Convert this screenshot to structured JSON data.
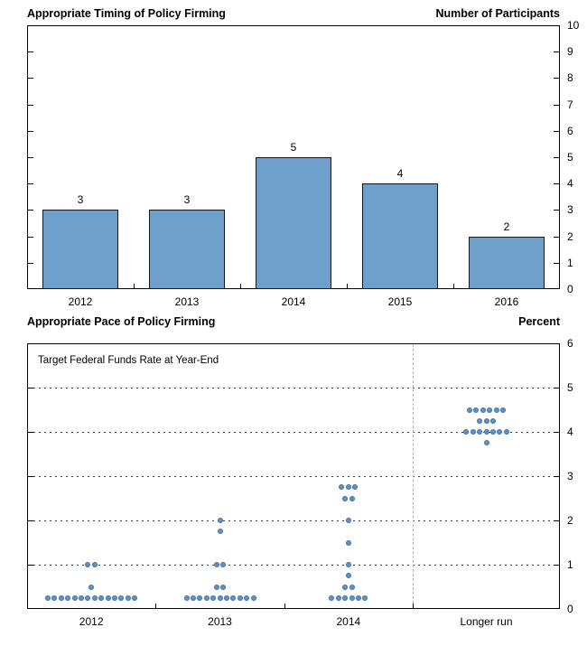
{
  "chart_data": [
    {
      "type": "bar",
      "title": "Appropriate Timing of Policy Firming",
      "right_axis_label": "Number of Participants",
      "categories": [
        "2012",
        "2013",
        "2014",
        "2015",
        "2016"
      ],
      "values": [
        3,
        3,
        5,
        4,
        2
      ],
      "ylim": [
        0,
        10
      ],
      "yticks": [
        0,
        1,
        2,
        3,
        4,
        5,
        6,
        7,
        8,
        9,
        10
      ],
      "grid": false,
      "legend": "none",
      "bar_color": "#6fa0cb",
      "bar_border_color": "#10151f"
    },
    {
      "type": "scatter",
      "title": "Appropriate Pace of Policy Firming",
      "right_axis_label": "Percent",
      "inner_label": "Target Federal Funds Rate at Year-End",
      "categories": [
        "2012",
        "2013",
        "2014",
        "Longer run"
      ],
      "ylim": [
        0,
        6
      ],
      "yticks": [
        0,
        1,
        2,
        3,
        4,
        5,
        6
      ],
      "gridlines_at": [
        1,
        2,
        3,
        4,
        5
      ],
      "divider_before_category": "Longer run",
      "divider_color": "#9ab8d8",
      "dot_color": "#5e93c5",
      "dot_border_color": "#42719e",
      "points": [
        {
          "category": "2012",
          "rate": 0.25,
          "count": 14
        },
        {
          "category": "2012",
          "rate": 0.5,
          "count": 1
        },
        {
          "category": "2012",
          "rate": 1.0,
          "count": 2
        },
        {
          "category": "2013",
          "rate": 0.25,
          "count": 11
        },
        {
          "category": "2013",
          "rate": 0.5,
          "count": 2
        },
        {
          "category": "2013",
          "rate": 1.0,
          "count": 2
        },
        {
          "category": "2013",
          "rate": 1.75,
          "count": 1
        },
        {
          "category": "2013",
          "rate": 2.0,
          "count": 1
        },
        {
          "category": "2014",
          "rate": 0.25,
          "count": 6
        },
        {
          "category": "2014",
          "rate": 0.5,
          "count": 2
        },
        {
          "category": "2014",
          "rate": 0.75,
          "count": 1
        },
        {
          "category": "2014",
          "rate": 1.0,
          "count": 1
        },
        {
          "category": "2014",
          "rate": 1.5,
          "count": 1
        },
        {
          "category": "2014",
          "rate": 2.0,
          "count": 1
        },
        {
          "category": "2014",
          "rate": 2.5,
          "count": 2
        },
        {
          "category": "2014",
          "rate": 2.75,
          "count": 3
        },
        {
          "category": "Longer run",
          "rate": 3.75,
          "count": 1
        },
        {
          "category": "Longer run",
          "rate": 4.0,
          "count": 7
        },
        {
          "category": "Longer run",
          "rate": 4.25,
          "count": 3
        },
        {
          "category": "Longer run",
          "rate": 4.5,
          "count": 6
        }
      ]
    }
  ]
}
